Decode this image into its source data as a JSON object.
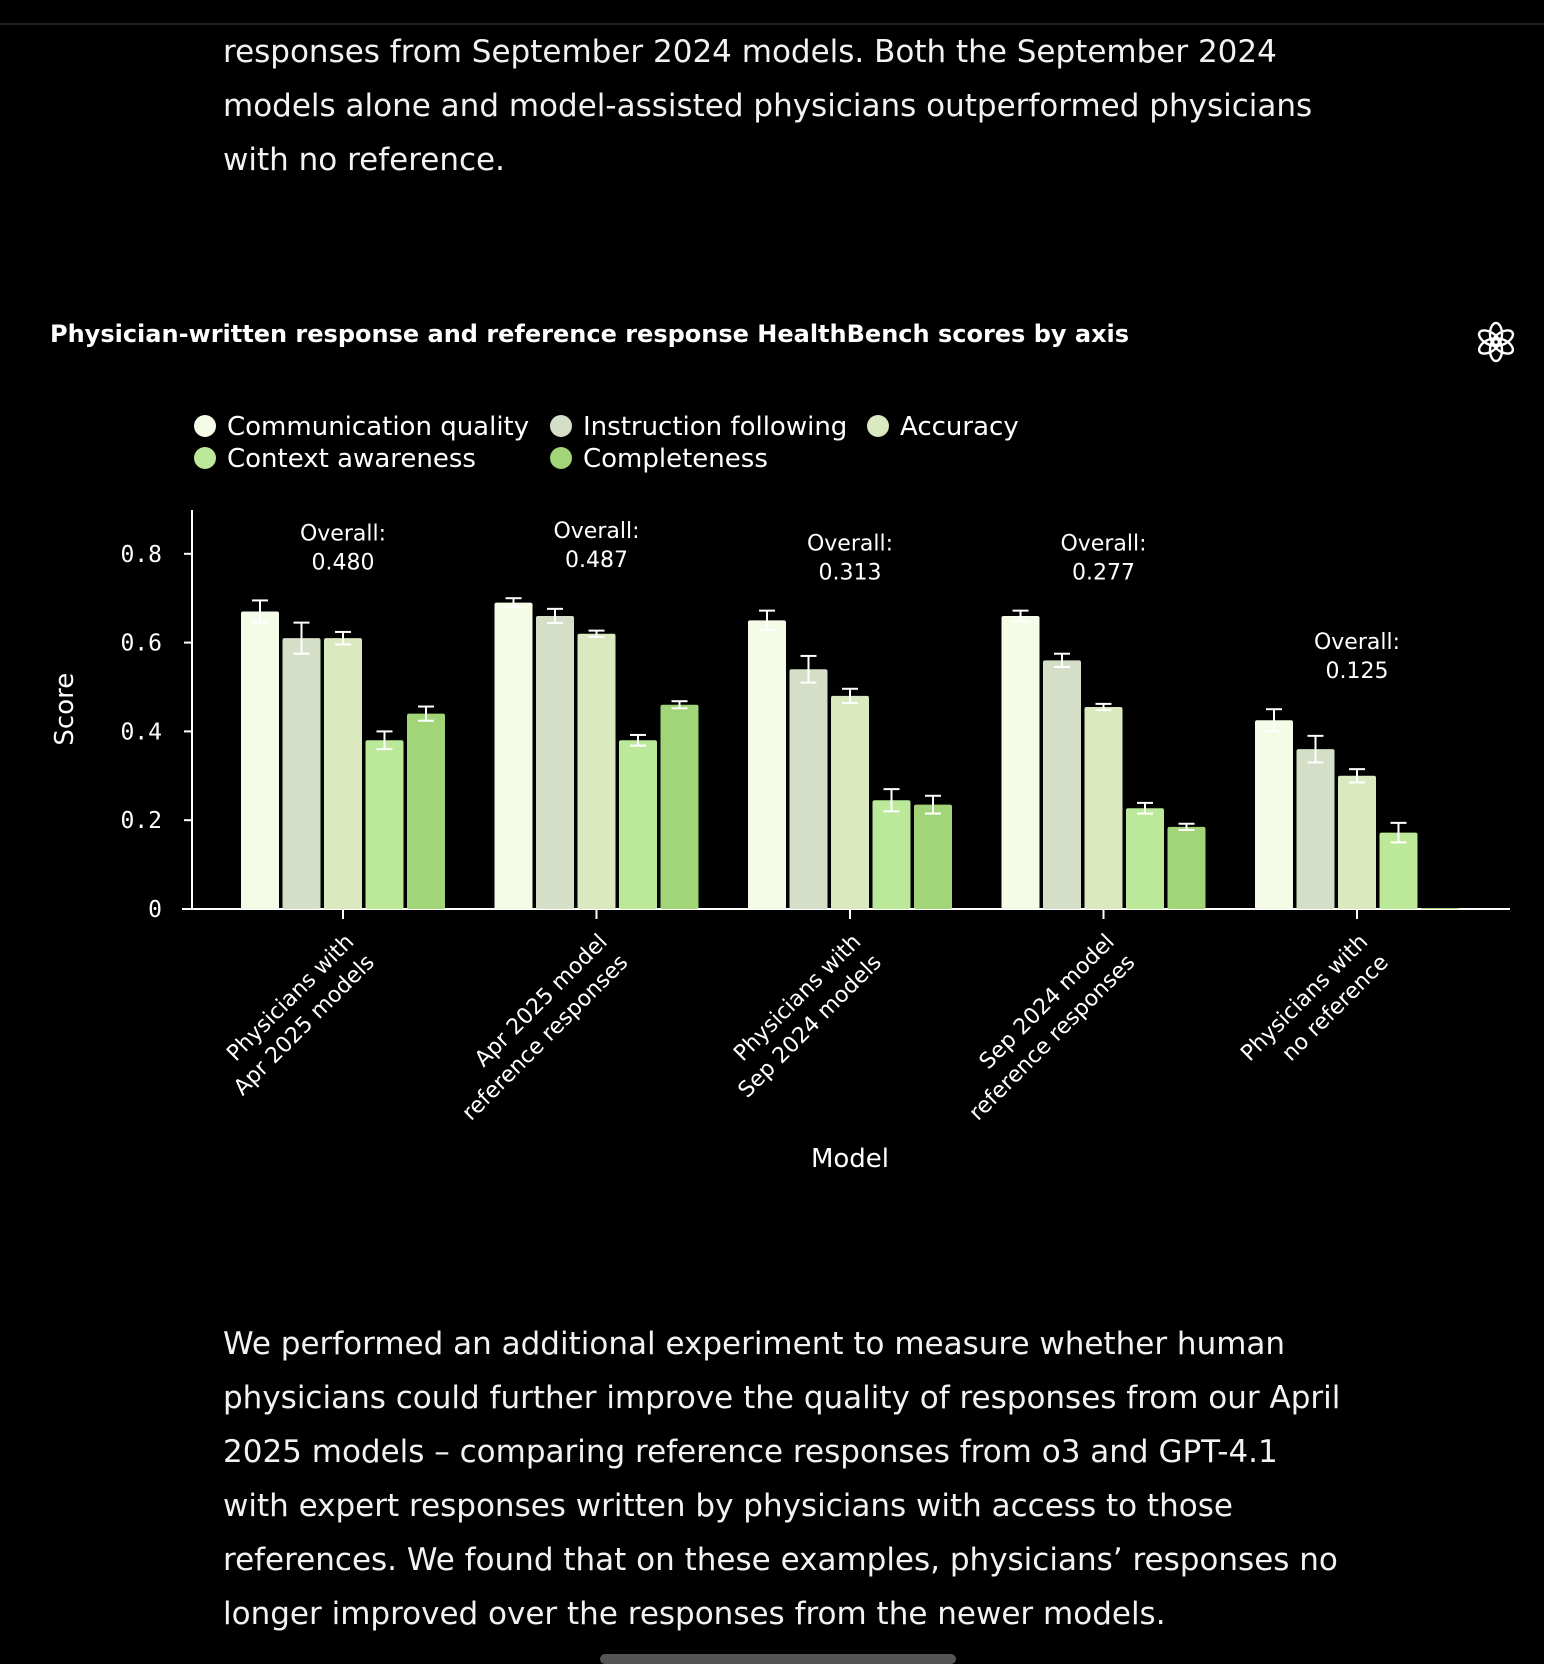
{
  "article": {
    "para_top": "responses from September 2024 models. Both the September 2024 models alone and model-assisted physicians outperformed physicians with no reference.",
    "para_bottom": "We performed an additional experiment to measure whether human physicians could further improve the quality of responses from our April 2025 models – comparing reference responses from o3 and GPT-4.1 with expert responses written by physicians with access to those references. We found that on these examples, physicians’ responses no longer improved over the responses from the newer models."
  },
  "logo_icon": "openai-logo-icon",
  "chart_data": {
    "type": "bar",
    "title": "Physician-written response and reference response HealthBench scores by axis",
    "xlabel": "Model",
    "ylabel": "Score",
    "ylim": [
      0,
      0.9
    ],
    "yticks": [
      "0",
      "0.2",
      "0.4",
      "0.6",
      "0.8"
    ],
    "grid": false,
    "legend_position": "top-left",
    "categories": [
      [
        "Physicians with",
        "Apr 2025 models"
      ],
      [
        "Apr 2025 model",
        "reference responses"
      ],
      [
        "Physicians with",
        "Sep 2024 models"
      ],
      [
        "Sep 2024 model",
        "reference responses"
      ],
      [
        "Physicians with",
        "no reference"
      ]
    ],
    "overall_label": "Overall:",
    "overall": [
      "0.480",
      "0.487",
      "0.313",
      "0.277",
      "0.125"
    ],
    "series": [
      {
        "name": "Communication quality",
        "color": "#f4fbe6",
        "values": [
          0.67,
          0.69,
          0.65,
          0.66,
          0.425
        ],
        "errors": [
          0.025,
          0.01,
          0.022,
          0.012,
          0.025
        ]
      },
      {
        "name": "Instruction following",
        "color": "#d5dfc8",
        "values": [
          0.61,
          0.66,
          0.54,
          0.56,
          0.36
        ],
        "errors": [
          0.035,
          0.016,
          0.03,
          0.015,
          0.03
        ]
      },
      {
        "name": "Accuracy",
        "color": "#dae9c0",
        "values": [
          0.61,
          0.62,
          0.48,
          0.455,
          0.3
        ],
        "errors": [
          0.014,
          0.007,
          0.016,
          0.007,
          0.015
        ]
      },
      {
        "name": "Context awareness",
        "color": "#bce89a",
        "values": [
          0.38,
          0.38,
          0.245,
          0.227,
          0.172
        ],
        "errors": [
          0.02,
          0.012,
          0.025,
          0.012,
          0.022
        ]
      },
      {
        "name": "Completeness",
        "color": "#a1d577",
        "values": [
          0.44,
          0.46,
          0.235,
          0.185,
          0.0
        ],
        "errors": [
          0.016,
          0.008,
          0.02,
          0.007,
          0.0
        ]
      }
    ]
  }
}
